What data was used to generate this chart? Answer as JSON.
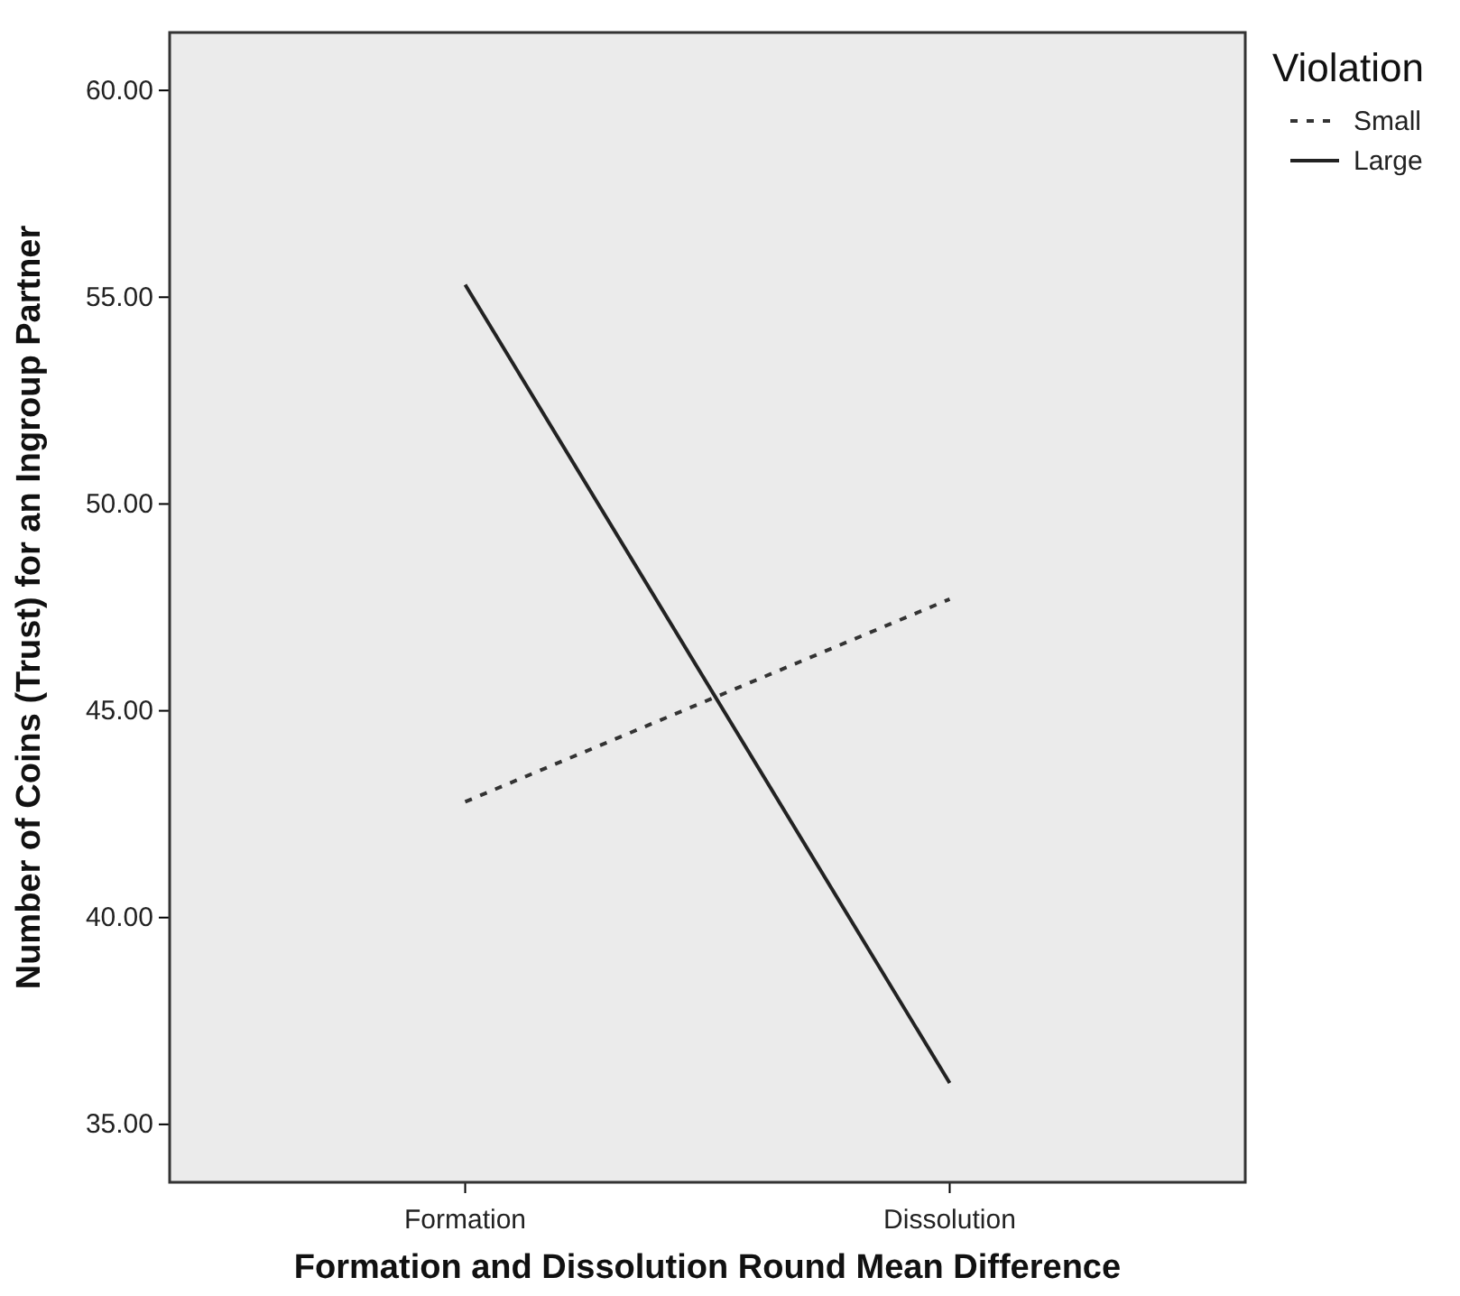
{
  "chart_data": {
    "type": "line",
    "xlabel": "Formation and Dissolution Round Mean Difference",
    "ylabel": "Number of Coins (Trust) for an Ingroup Partner",
    "legend_title": "Violation",
    "legend": "top right",
    "categories": [
      "Formation",
      "Dissolution"
    ],
    "series": [
      {
        "name": "Small",
        "color": "#333333",
        "values": [
          42.8,
          47.7
        ],
        "line_style": "dotted"
      },
      {
        "name": "Large",
        "color": "#222222",
        "values": [
          55.3,
          36.0
        ],
        "line_style": "solid"
      }
    ],
    "ylim": [
      33.6,
      61.4
    ],
    "yticks": [
      {
        "value": 35,
        "label": "35.00"
      },
      {
        "value": 40,
        "label": "40.00"
      },
      {
        "value": 45,
        "label": "45.00"
      },
      {
        "value": 50,
        "label": "50.00"
      },
      {
        "value": 55,
        "label": "55.00"
      },
      {
        "value": 60,
        "label": "60.00"
      }
    ],
    "grid": false
  }
}
